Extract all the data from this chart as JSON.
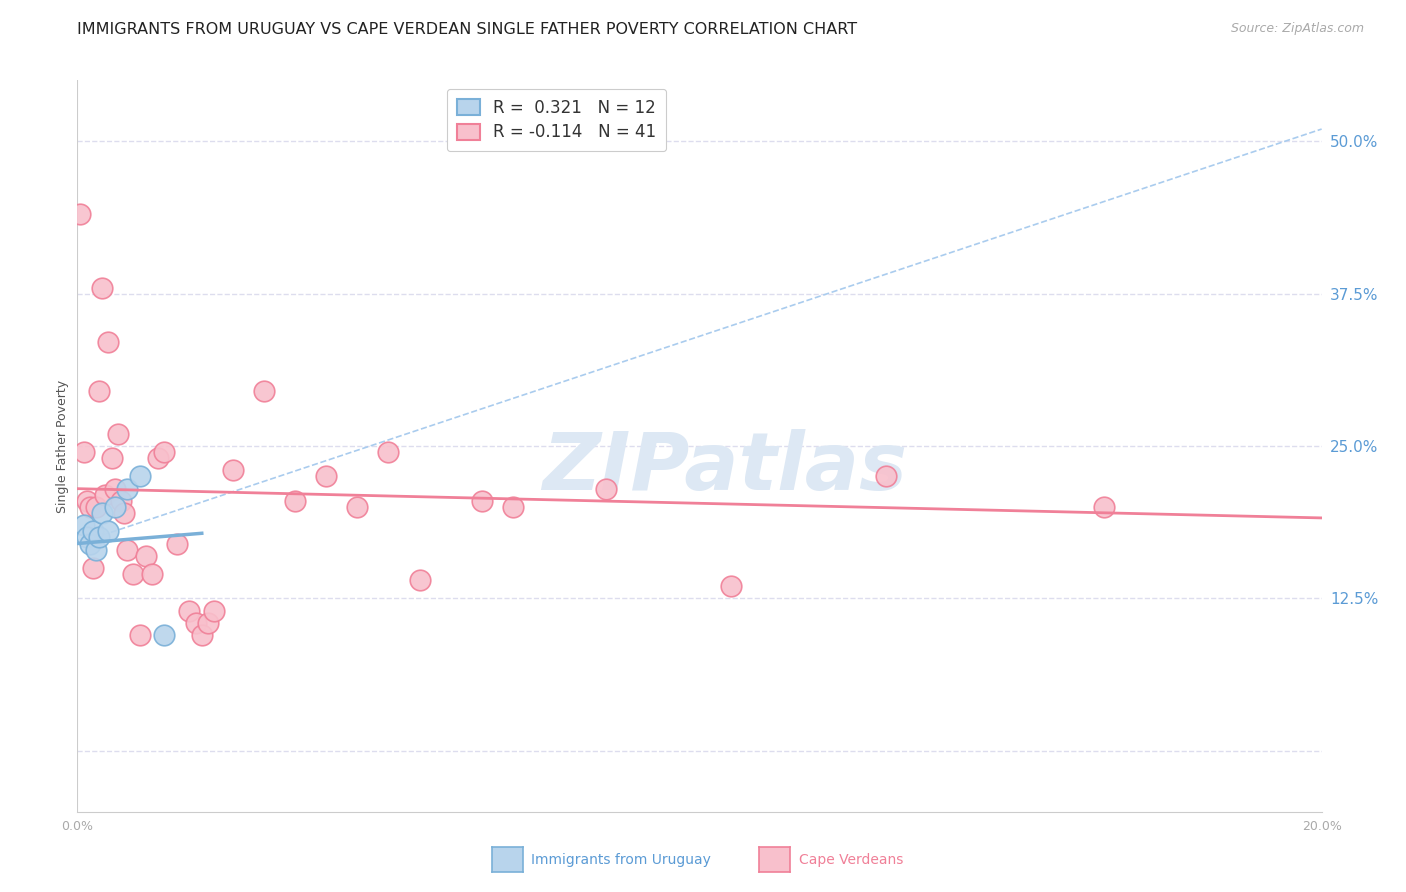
{
  "title": "IMMIGRANTS FROM URUGUAY VS CAPE VERDEAN SINGLE FATHER POVERTY CORRELATION CHART",
  "source": "Source: ZipAtlas.com",
  "ylabel": "Single Father Poverty",
  "xlim": [
    0.0,
    20.0
  ],
  "ylim": [
    -5.0,
    55.0
  ],
  "ytick_vals": [
    0.0,
    12.5,
    25.0,
    37.5,
    50.0
  ],
  "ytick_labels": [
    "",
    "12.5%",
    "25.0%",
    "37.5%",
    "50.0%"
  ],
  "legend_entry1": "R =  0.321   N = 12",
  "legend_entry2": "R = -0.114   N = 41",
  "legend_label1": "Immigrants from Uruguay",
  "legend_label2": "Cape Verdeans",
  "blue_color": "#7ab0d8",
  "pink_color": "#f08098",
  "blue_fill": "#b8d4ec",
  "pink_fill": "#f8c0cc",
  "blue_dots": [
    [
      0.1,
      18.5
    ],
    [
      0.15,
      17.5
    ],
    [
      0.2,
      17.0
    ],
    [
      0.25,
      18.0
    ],
    [
      0.3,
      16.5
    ],
    [
      0.35,
      17.5
    ],
    [
      0.4,
      19.5
    ],
    [
      0.5,
      18.0
    ],
    [
      0.6,
      20.0
    ],
    [
      0.8,
      21.5
    ],
    [
      1.0,
      22.5
    ],
    [
      1.4,
      9.5
    ]
  ],
  "pink_dots": [
    [
      0.05,
      44.0
    ],
    [
      0.1,
      24.5
    ],
    [
      0.15,
      20.5
    ],
    [
      0.2,
      20.0
    ],
    [
      0.25,
      15.0
    ],
    [
      0.3,
      20.0
    ],
    [
      0.35,
      29.5
    ],
    [
      0.4,
      38.0
    ],
    [
      0.45,
      21.0
    ],
    [
      0.5,
      33.5
    ],
    [
      0.55,
      24.0
    ],
    [
      0.6,
      21.5
    ],
    [
      0.65,
      26.0
    ],
    [
      0.7,
      20.5
    ],
    [
      0.75,
      19.5
    ],
    [
      0.8,
      16.5
    ],
    [
      0.9,
      14.5
    ],
    [
      1.0,
      9.5
    ],
    [
      1.1,
      16.0
    ],
    [
      1.2,
      14.5
    ],
    [
      1.3,
      24.0
    ],
    [
      1.4,
      24.5
    ],
    [
      1.6,
      17.0
    ],
    [
      1.8,
      11.5
    ],
    [
      1.9,
      10.5
    ],
    [
      2.0,
      9.5
    ],
    [
      2.1,
      10.5
    ],
    [
      2.2,
      11.5
    ],
    [
      2.5,
      23.0
    ],
    [
      3.0,
      29.5
    ],
    [
      3.5,
      20.5
    ],
    [
      4.0,
      22.5
    ],
    [
      4.5,
      20.0
    ],
    [
      5.0,
      24.5
    ],
    [
      5.5,
      14.0
    ],
    [
      6.5,
      20.5
    ],
    [
      7.0,
      20.0
    ],
    [
      8.5,
      21.5
    ],
    [
      10.5,
      13.5
    ],
    [
      13.0,
      22.5
    ],
    [
      16.5,
      20.0
    ]
  ],
  "blue_trend_y0": 17.0,
  "blue_trend_slope": 0.42,
  "blue_dashed_y0": 17.0,
  "blue_dashed_slope": 1.7,
  "pink_trend_y0": 21.5,
  "pink_trend_slope": -0.12,
  "background_color": "#ffffff",
  "grid_color": "#ddddee",
  "title_fontsize": 11.5,
  "watermark": "ZIPatlas",
  "watermark_color": "#dde8f4"
}
